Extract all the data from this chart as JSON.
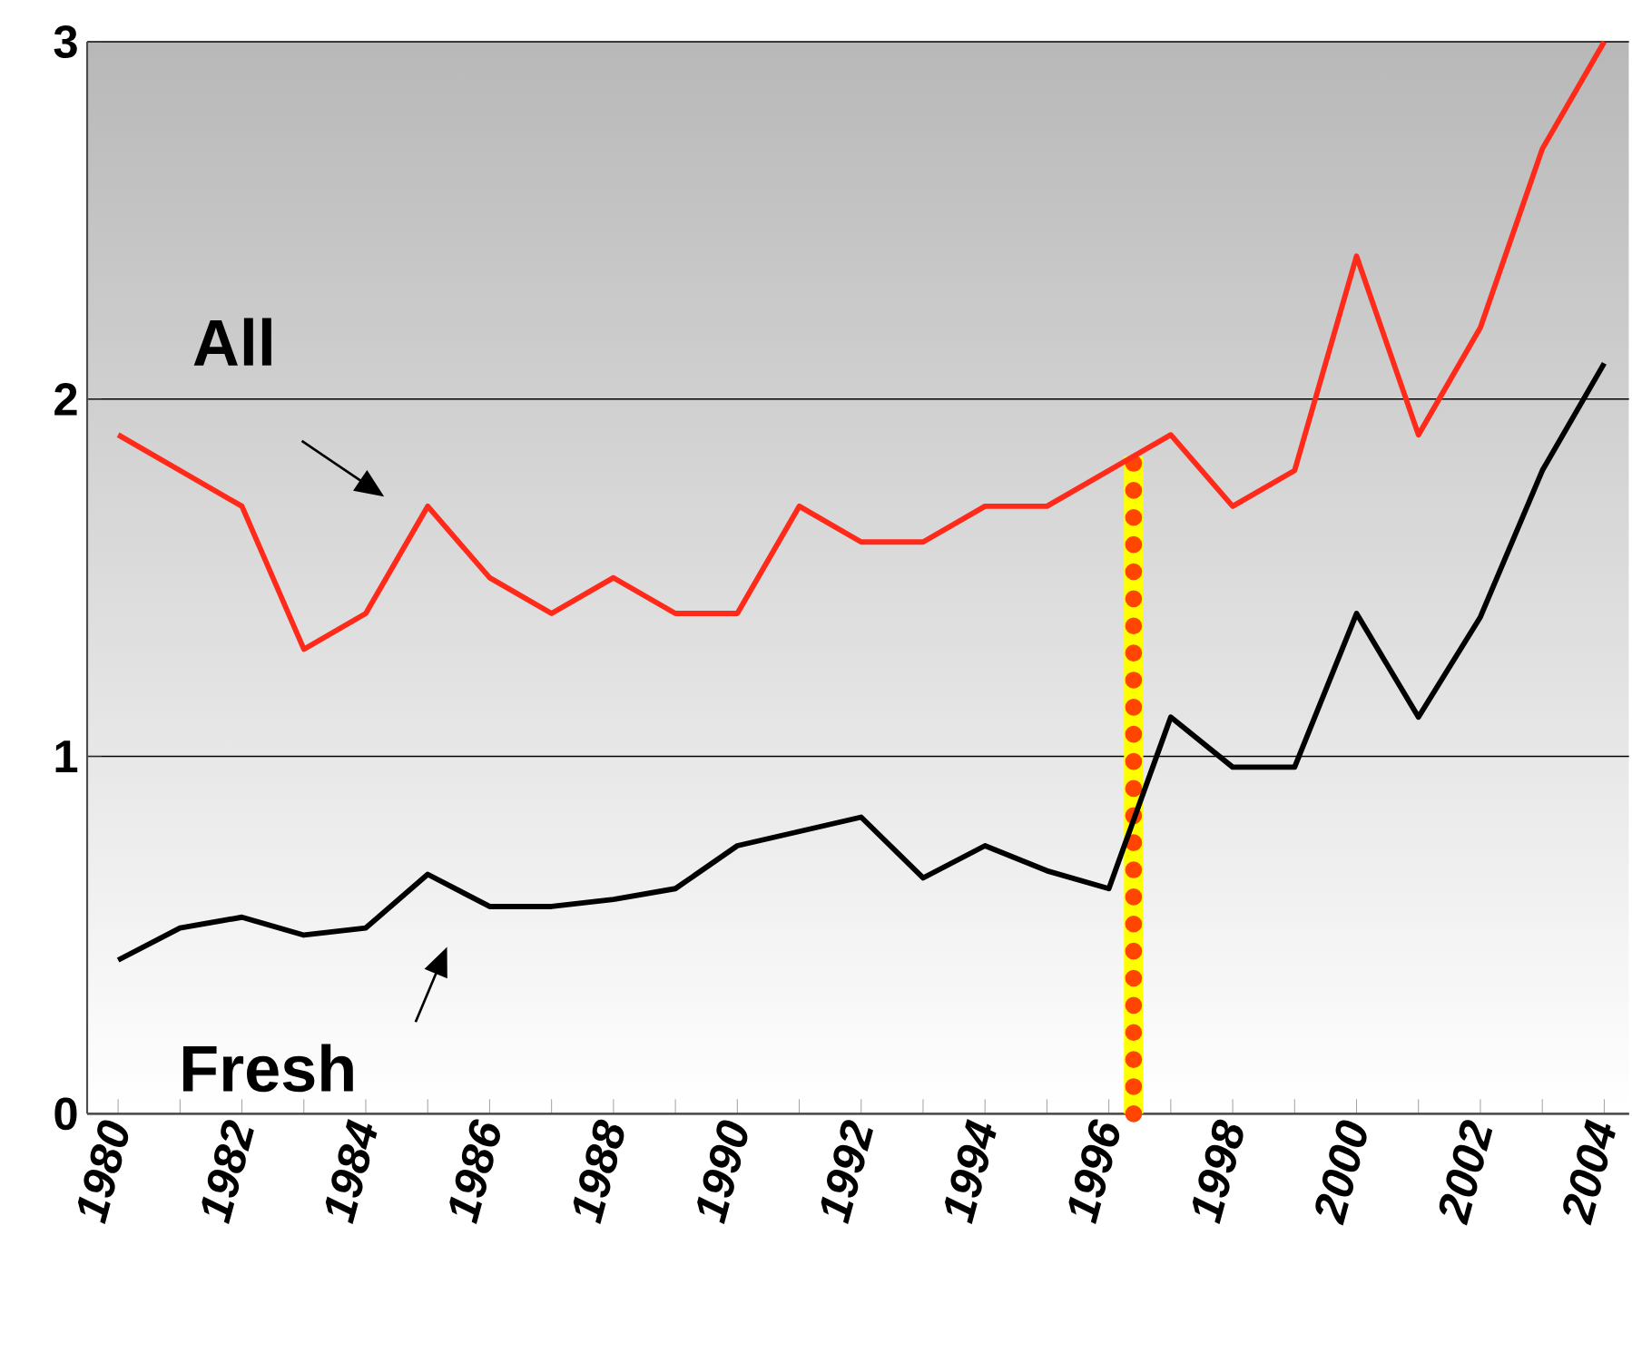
{
  "chart_data": {
    "type": "line",
    "x": [
      1980,
      1981,
      1982,
      1983,
      1984,
      1985,
      1986,
      1987,
      1988,
      1989,
      1990,
      1991,
      1992,
      1993,
      1994,
      1995,
      1996,
      1997,
      1998,
      1999,
      2000,
      2001,
      2002,
      2003,
      2004
    ],
    "series": [
      {
        "name": "All",
        "color": "#ff2a1a",
        "values": [
          1.9,
          1.8,
          1.7,
          1.3,
          1.4,
          1.7,
          1.5,
          1.4,
          1.5,
          1.4,
          1.4,
          1.7,
          1.6,
          1.6,
          1.7,
          1.7,
          1.8,
          1.9,
          1.7,
          1.8,
          2.4,
          1.9,
          2.2,
          2.7,
          3.0
        ]
      },
      {
        "name": "Fresh",
        "color": "#000000",
        "values": [
          0.43,
          0.52,
          0.55,
          0.5,
          0.52,
          0.67,
          0.58,
          0.58,
          0.6,
          0.63,
          0.75,
          0.79,
          0.83,
          0.66,
          0.75,
          0.68,
          0.63,
          1.11,
          0.97,
          0.97,
          1.4,
          1.11,
          1.39,
          1.8,
          2.1
        ]
      }
    ],
    "xlim": [
      1979.5,
      2004.4
    ],
    "ylim": [
      0,
      3
    ],
    "xticks": [
      1980,
      1982,
      1984,
      1986,
      1988,
      1990,
      1992,
      1994,
      1996,
      1998,
      2000,
      2002,
      2004
    ],
    "yticks": [
      0,
      1,
      2,
      3
    ],
    "grid": "y",
    "ref_lines": [
      {
        "axis": "x",
        "value": 1996.4,
        "color": "#ffff00",
        "line_style": "solid"
      },
      {
        "axis": "x",
        "value": 1996.4,
        "color": "#ff4500",
        "line_style": "dotted"
      }
    ]
  }
}
